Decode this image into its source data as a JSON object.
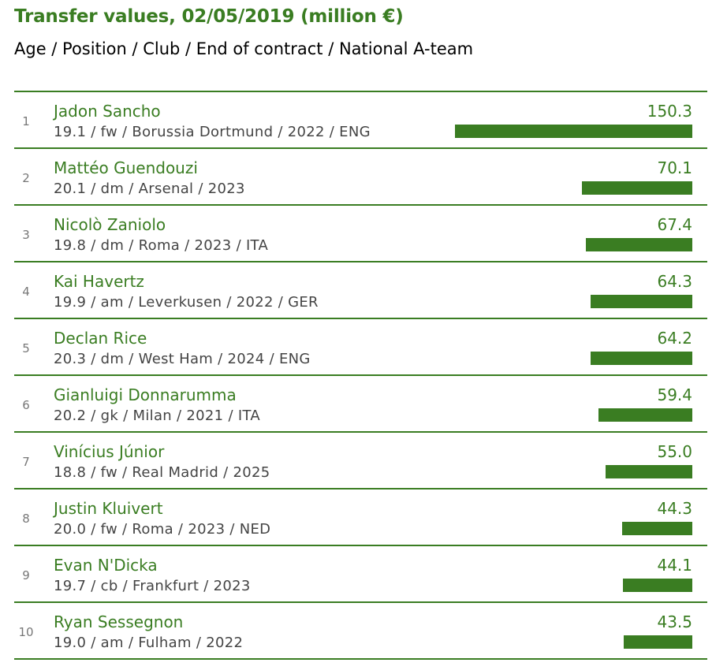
{
  "title": "Transfer values, 02/05/2019 (million €)",
  "subtitle": "Age / Position / Club / End of contract / National A-team",
  "colors": {
    "accent": "#3a7d22"
  },
  "chart_data": {
    "type": "bar",
    "orientation": "horizontal",
    "title": "Transfer values, 02/05/2019 (million €)",
    "categories": [
      "Jadon Sancho",
      "Mattéo Guendouzi",
      "Nicolò Zaniolo",
      "Kai Havertz",
      "Declan Rice",
      "Gianluigi Donnarumma",
      "Vinícius Júnior",
      "Justin Kluivert",
      "Evan N'Dicka",
      "Ryan Sessegnon"
    ],
    "values": [
      150.3,
      70.1,
      67.4,
      64.3,
      64.2,
      59.4,
      55.0,
      44.3,
      44.1,
      43.5
    ],
    "xlim": [
      0,
      150.3
    ],
    "grid": false
  },
  "rows": [
    {
      "rank": "1",
      "name": "Jadon Sancho",
      "info": "19.1 / fw / Borussia Dortmund / 2022 / ENG",
      "value": "150.3"
    },
    {
      "rank": "2",
      "name": "Mattéo Guendouzi",
      "info": "20.1 / dm / Arsenal / 2023",
      "value": "70.1"
    },
    {
      "rank": "3",
      "name": "Nicolò Zaniolo",
      "info": "19.8 / dm / Roma / 2023 / ITA",
      "value": "67.4"
    },
    {
      "rank": "4",
      "name": "Kai Havertz",
      "info": "19.9 / am / Leverkusen / 2022 / GER",
      "value": "64.3"
    },
    {
      "rank": "5",
      "name": "Declan Rice",
      "info": "20.3 / dm / West Ham / 2024 / ENG",
      "value": "64.2"
    },
    {
      "rank": "6",
      "name": "Gianluigi Donnarumma",
      "info": "20.2 / gk / Milan / 2021 / ITA",
      "value": "59.4"
    },
    {
      "rank": "7",
      "name": "Vinícius Júnior",
      "info": "18.8 / fw / Real Madrid / 2025",
      "value": "55.0"
    },
    {
      "rank": "8",
      "name": "Justin Kluivert",
      "info": "20.0 / fw / Roma / 2023 / NED",
      "value": "44.3"
    },
    {
      "rank": "9",
      "name": "Evan N'Dicka",
      "info": "19.7 / cb / Frankfurt / 2023",
      "value": "44.1"
    },
    {
      "rank": "10",
      "name": "Ryan Sessegnon",
      "info": "19.0 / am / Fulham / 2022",
      "value": "43.5"
    }
  ]
}
